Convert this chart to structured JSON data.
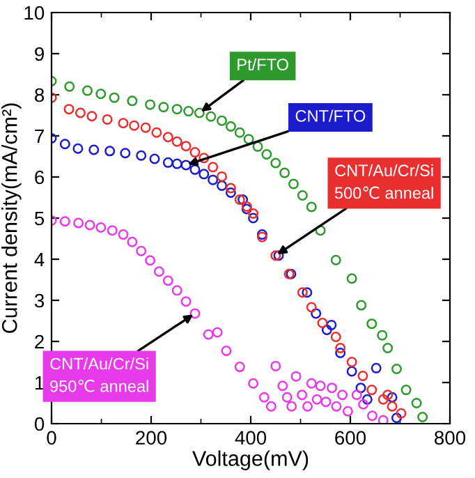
{
  "chart_data": {
    "type": "scatter",
    "xlabel": "Voltage(mV)",
    "ylabel": "Current density(mA/cm²)",
    "xlim": [
      0,
      800
    ],
    "ylim": [
      0,
      10
    ],
    "xticks": [
      0,
      200,
      400,
      600,
      800
    ],
    "yticks": [
      0,
      1,
      2,
      3,
      4,
      5,
      6,
      7,
      8,
      9,
      10
    ],
    "grid": false,
    "legend": false,
    "marker": "circle",
    "series": [
      {
        "name": "Pt/FTO",
        "color": "#2e9a2e",
        "x": [
          0,
          36,
          72,
          99,
          126,
          162,
          198,
          225,
          252,
          275,
          297,
          320,
          342,
          360,
          378,
          396,
          414,
          432,
          450,
          468,
          486,
          504,
          522,
          540,
          571,
          603,
          622,
          643,
          664,
          675,
          693,
          712,
          733,
          745
        ],
        "values": [
          8.33,
          8.2,
          8.1,
          8.02,
          7.93,
          7.85,
          7.76,
          7.7,
          7.65,
          7.6,
          7.56,
          7.47,
          7.37,
          7.23,
          7.08,
          6.92,
          6.74,
          6.55,
          6.34,
          6.1,
          5.83,
          5.55,
          5.27,
          4.7,
          3.98,
          3.53,
          2.88,
          2.43,
          2.15,
          1.84,
          1.33,
          0.82,
          0.5,
          0.16
        ]
      },
      {
        "name": "CNT/FTO",
        "color": "#1c1ccc",
        "x": [
          0,
          27,
          53,
          85,
          117,
          148,
          180,
          207,
          234,
          252,
          270,
          288,
          306,
          324,
          342,
          360,
          384,
          392,
          405,
          423,
          456,
          481,
          513,
          531,
          553,
          562,
          580,
          603,
          621,
          634,
          652,
          684,
          693
        ],
        "values": [
          6.94,
          6.8,
          6.69,
          6.66,
          6.63,
          6.58,
          6.52,
          6.44,
          6.35,
          6.32,
          6.29,
          6.18,
          6.07,
          5.93,
          5.79,
          5.62,
          5.45,
          5.22,
          5.0,
          4.6,
          4.09,
          3.64,
          3.19,
          2.68,
          2.28,
          2.4,
          1.72,
          1.27,
          0.87,
          0.59,
          1.35,
          0.64,
          0.14
        ]
      },
      {
        "name": "CNT/Au/Cr/Si\n500℃ anneal",
        "color": "#e83030",
        "x": [
          0,
          35,
          58,
          81,
          112,
          144,
          166,
          189,
          211,
          234,
          252,
          270,
          288,
          306,
          324,
          342,
          360,
          378,
          392,
          405,
          423,
          450,
          477,
          504,
          522,
          544,
          571,
          580,
          603,
          625,
          643,
          666,
          675,
          684,
          702
        ],
        "values": [
          7.93,
          7.65,
          7.56,
          7.48,
          7.4,
          7.31,
          7.25,
          7.2,
          7.08,
          6.97,
          6.86,
          6.75,
          6.6,
          6.46,
          6.24,
          6.01,
          5.73,
          5.45,
          5.28,
          5.11,
          4.54,
          4.09,
          3.64,
          3.19,
          2.83,
          2.45,
          2.11,
          1.84,
          1.5,
          1.16,
          0.82,
          0.59,
          0.7,
          0.42,
          0.25
        ]
      },
      {
        "name": "CNT/Au/Cr/Si\n950℃ anneal",
        "color": "#e83ae8",
        "x": [
          0,
          27,
          54,
          77,
          99,
          122,
          144,
          162,
          180,
          198,
          216,
          234,
          252,
          270,
          288,
          315,
          333,
          351,
          378,
          405,
          427,
          441,
          450,
          464,
          473,
          482,
          491,
          503,
          514,
          522,
          533,
          540,
          551,
          563,
          572,
          584,
          595,
          613,
          626,
          644,
          666
        ],
        "values": [
          4.94,
          4.92,
          4.88,
          4.83,
          4.77,
          4.7,
          4.6,
          4.42,
          4.2,
          3.97,
          3.7,
          3.48,
          3.24,
          2.97,
          2.68,
          2.17,
          2.22,
          1.77,
          1.38,
          0.98,
          0.64,
          0.42,
          1.4,
          0.92,
          0.64,
          0.42,
          1.15,
          0.7,
          0.42,
          0.98,
          0.59,
          0.92,
          0.53,
          0.87,
          0.42,
          0.7,
          0.3,
          0.7,
          0.47,
          0.19,
          0.08
        ]
      }
    ]
  }
}
